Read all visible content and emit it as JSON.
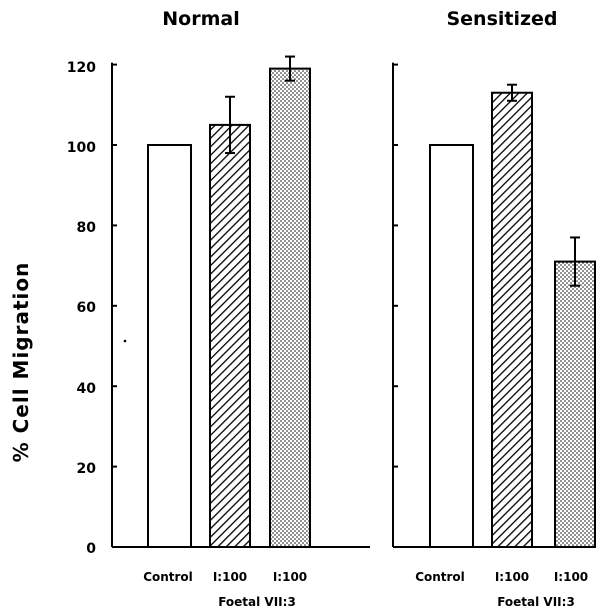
{
  "chart_data": [
    {
      "type": "bar",
      "title": "Normal",
      "ylabel": "% Cell Migration",
      "ylim": [
        0,
        120
      ],
      "yticks": [
        "0",
        "20",
        "40",
        "60",
        "80",
        "100",
        "120"
      ],
      "categories": [
        "Control",
        "I:100",
        "I:100"
      ],
      "group_label": "Foetal VII:3",
      "values": [
        100,
        105,
        119
      ],
      "errors": [
        0,
        7,
        3
      ],
      "patterns": [
        "empty",
        "hatched",
        "dotted"
      ]
    },
    {
      "type": "bar",
      "title": "Sensitized",
      "ylim": [
        0,
        120
      ],
      "categories": [
        "Control",
        "I:100",
        "I:100"
      ],
      "group_label": "Foetal VII:3",
      "values": [
        100,
        113,
        71
      ],
      "errors": [
        0,
        2,
        6
      ],
      "patterns": [
        "empty",
        "hatched",
        "dotted"
      ]
    }
  ]
}
